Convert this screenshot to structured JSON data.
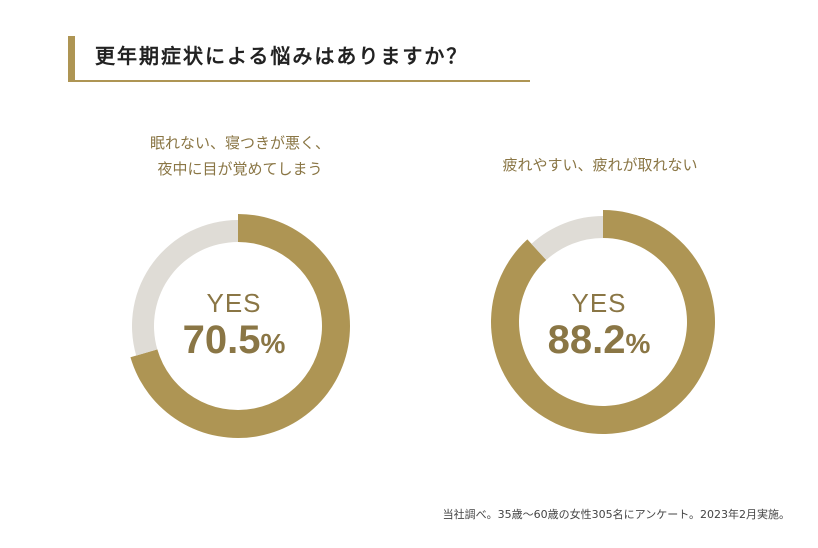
{
  "title": "更年期症状による悩みはありますか？",
  "colors": {
    "accent": "#ae9554",
    "track": "#dfdcd6",
    "caption": "#8a7645"
  },
  "chart_data": [
    {
      "type": "pie",
      "caption_lines": [
        "眠れない、寝つきが悪く、",
        "夜中に目が覚めてしまう"
      ],
      "center_label": "YES",
      "value_text": "70.5",
      "unit": "%",
      "slices": [
        {
          "label": "YES",
          "value": 70.5
        },
        {
          "label": "",
          "value": 29.5
        }
      ]
    },
    {
      "type": "pie",
      "caption_lines": [
        "疲れやすい、疲れが取れない"
      ],
      "center_label": "YES",
      "value_text": "88.2",
      "unit": "%",
      "slices": [
        {
          "label": "YES",
          "value": 88.2
        },
        {
          "label": "",
          "value": 11.8
        }
      ]
    }
  ],
  "footnote": "当社調べ。35歳〜60歳の女性305名にアンケート。2023年2月実施。"
}
